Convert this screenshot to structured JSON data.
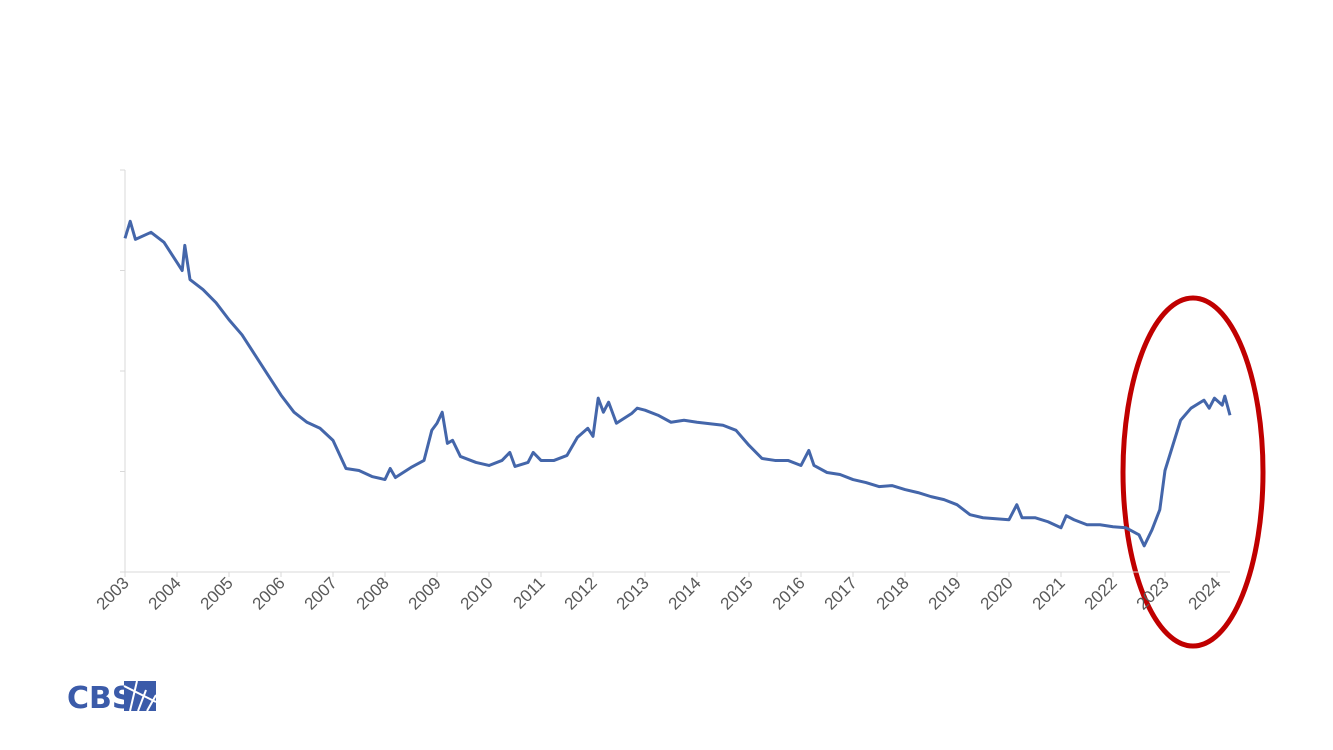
{
  "chart_data": {
    "type": "line",
    "logo": "CBS",
    "x": [
      2003.0,
      2003.1,
      2003.2,
      2003.5,
      2003.75,
      2004.0,
      2004.1,
      2004.15,
      2004.25,
      2004.5,
      2004.75,
      2005.0,
      2005.25,
      2005.5,
      2005.75,
      2006.0,
      2006.25,
      2006.5,
      2006.75,
      2007.0,
      2007.25,
      2007.5,
      2007.75,
      2008.0,
      2008.1,
      2008.2,
      2008.5,
      2008.75,
      2008.9,
      2009.0,
      2009.1,
      2009.2,
      2009.3,
      2009.45,
      2009.75,
      2010.0,
      2010.25,
      2010.4,
      2010.5,
      2010.75,
      2010.85,
      2011.0,
      2011.25,
      2011.5,
      2011.7,
      2011.9,
      2012.0,
      2012.1,
      2012.2,
      2012.3,
      2012.45,
      2012.75,
      2012.85,
      2013.0,
      2013.25,
      2013.5,
      2013.75,
      2014.0,
      2014.5,
      2014.75,
      2015.0,
      2015.25,
      2015.5,
      2015.75,
      2016.0,
      2016.15,
      2016.25,
      2016.5,
      2016.75,
      2017.0,
      2017.25,
      2017.5,
      2017.75,
      2018.0,
      2018.25,
      2018.5,
      2018.75,
      2019.0,
      2019.25,
      2019.5,
      2019.75,
      2020.0,
      2020.15,
      2020.25,
      2020.5,
      2020.75,
      2021.0,
      2021.1,
      2021.25,
      2021.5,
      2021.75,
      2022.0,
      2022.25,
      2022.5,
      2022.6,
      2022.75,
      2022.9,
      2023.0,
      2023.15,
      2023.3,
      2023.5,
      2023.75,
      2023.85,
      2023.95,
      2024.1,
      2024.15,
      2024.25
    ],
    "series": [
      {
        "color": "#4466aa",
        "values": [
          3.32,
          3.49,
          3.31,
          3.38,
          3.28,
          3.08,
          3.0,
          3.25,
          2.91,
          2.81,
          2.68,
          2.51,
          2.36,
          2.16,
          1.96,
          1.76,
          1.59,
          1.49,
          1.43,
          1.31,
          1.03,
          1.01,
          0.95,
          0.92,
          1.03,
          0.94,
          1.04,
          1.11,
          1.41,
          1.48,
          1.59,
          1.28,
          1.31,
          1.15,
          1.09,
          1.06,
          1.11,
          1.19,
          1.05,
          1.09,
          1.19,
          1.11,
          1.11,
          1.16,
          1.34,
          1.43,
          1.35,
          1.73,
          1.59,
          1.69,
          1.48,
          1.58,
          1.63,
          1.61,
          1.56,
          1.49,
          1.51,
          1.49,
          1.46,
          1.41,
          1.26,
          1.13,
          1.11,
          1.11,
          1.06,
          1.21,
          1.06,
          0.99,
          0.97,
          0.92,
          0.89,
          0.85,
          0.86,
          0.82,
          0.79,
          0.75,
          0.72,
          0.67,
          0.57,
          0.54,
          0.53,
          0.52,
          0.67,
          0.54,
          0.54,
          0.5,
          0.44,
          0.56,
          0.52,
          0.47,
          0.47,
          0.45,
          0.44,
          0.37,
          0.26,
          0.42,
          0.62,
          1.01,
          1.26,
          1.51,
          1.63,
          1.71,
          1.63,
          1.73,
          1.66,
          1.75,
          1.56
        ]
      }
    ],
    "xlim": [
      2003,
      2024.25
    ],
    "xticks": [
      2003,
      2004,
      2005,
      2006,
      2007,
      2008,
      2009,
      2010,
      2011,
      2012,
      2013,
      2014,
      2015,
      2016,
      2017,
      2018,
      2019,
      2020,
      2021,
      2022,
      2023,
      2024
    ],
    "ylim": [
      0,
      4
    ],
    "yticks": [
      0,
      1,
      2,
      3,
      4
    ],
    "ytick_labels": false,
    "grid": false
  }
}
